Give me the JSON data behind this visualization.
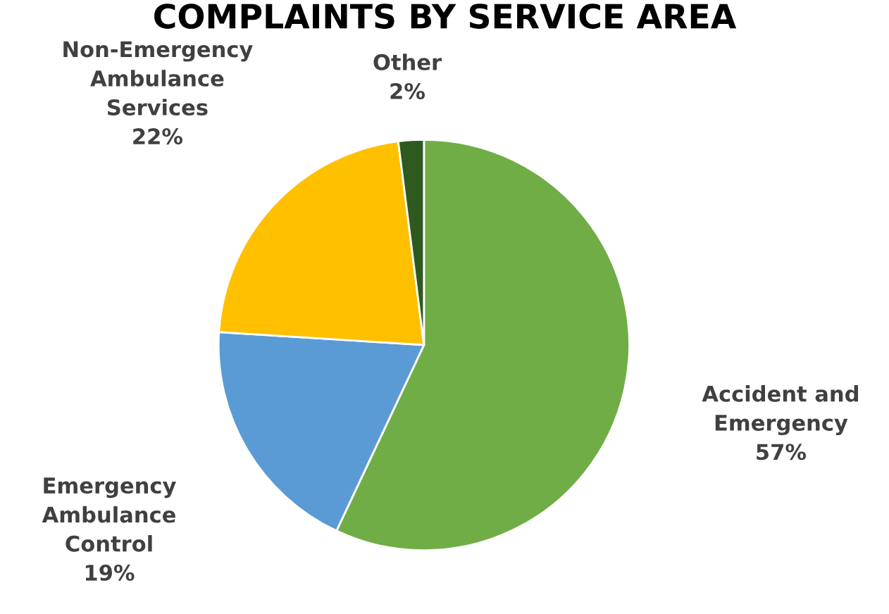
{
  "chart_data": {
    "type": "pie",
    "title": "COMPLAINTS BY SERVICE AREA",
    "categories": [
      "Accident and Emergency",
      "Emergency Ambulance Control",
      "Non-Emergency Ambulance Services",
      "Other"
    ],
    "values": [
      57,
      19,
      22,
      2
    ],
    "value_labels": [
      "57%",
      "19%",
      "22%",
      "2%"
    ],
    "colors": [
      "#70ad47",
      "#5b9bd5",
      "#ffc000",
      "#2f5a1f"
    ]
  }
}
